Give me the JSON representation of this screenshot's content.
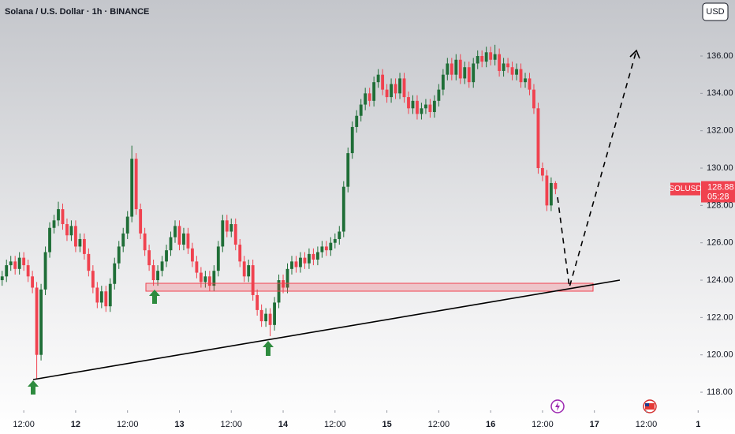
{
  "chart_data": {
    "type": "candlestick",
    "title": "Solana / U.S. Dollar · 1h · BINANCE",
    "currency": "USD",
    "symbol": "SOLUSD",
    "countdown": "05:28",
    "up_color": "#1f6e37",
    "down_color": "#f0424f",
    "open": [
      124.0,
      124.2,
      124.8,
      125.0,
      124.6,
      125.2,
      124.8,
      124.2,
      123.6,
      120.0,
      123.5,
      125.5,
      126.8,
      127.2,
      127.8,
      127.0,
      126.4,
      126.9,
      125.8,
      126.2,
      125.4,
      124.5,
      123.6,
      122.8,
      123.4,
      122.6,
      123.8,
      124.9,
      125.8,
      126.5,
      127.4,
      130.5,
      127.8,
      126.5,
      125.6,
      124.8,
      124.0,
      124.5,
      125.0,
      125.6,
      126.3,
      126.9,
      125.9,
      126.5,
      125.7,
      125.0,
      124.4,
      123.9,
      124.2,
      123.7,
      124.5,
      125.8,
      127.2,
      126.6,
      127.0,
      125.9,
      125.0,
      124.2,
      124.8,
      123.2,
      122.4,
      121.8,
      122.2,
      121.6,
      122.8,
      124.0,
      123.6,
      124.6,
      125.0,
      124.7,
      125.2,
      124.9,
      125.4,
      125.1,
      125.5,
      125.8,
      125.6,
      126.0,
      126.2,
      126.6,
      129.0,
      130.8,
      132.2,
      132.8,
      133.4,
      134.0,
      133.6,
      134.6,
      135.0,
      134.2,
      133.8,
      134.5,
      134.0,
      134.8,
      133.8,
      133.2,
      133.6,
      132.9,
      133.2,
      133.4,
      133.0,
      133.6,
      134.2,
      135.0,
      135.6,
      135.0,
      135.8,
      134.8,
      135.4,
      134.6,
      135.6,
      136.0,
      135.7,
      136.2,
      135.8,
      136.1,
      135.2,
      135.6,
      135.4,
      135.0,
      135.3,
      134.6,
      134.8,
      134.2,
      133.2,
      130.0,
      129.6,
      128.0,
      129.2
    ],
    "high": [
      124.5,
      125.1,
      125.3,
      125.3,
      125.5,
      125.5,
      125.1,
      124.5,
      123.9,
      123.8,
      125.8,
      127.1,
      127.5,
      128.2,
      128.1,
      127.3,
      127.2,
      127.2,
      126.5,
      126.5,
      125.7,
      124.8,
      123.9,
      123.7,
      123.7,
      124.1,
      125.2,
      126.1,
      126.8,
      127.7,
      131.2,
      130.8,
      128.1,
      126.8,
      125.9,
      125.1,
      124.8,
      125.3,
      125.9,
      126.6,
      127.2,
      127.2,
      126.8,
      126.8,
      126.0,
      125.3,
      124.7,
      124.5,
      124.5,
      124.8,
      126.1,
      127.5,
      127.5,
      127.3,
      127.3,
      126.2,
      125.3,
      125.1,
      125.1,
      123.5,
      122.7,
      122.5,
      122.5,
      123.1,
      124.3,
      124.3,
      124.9,
      125.3,
      125.3,
      125.5,
      125.5,
      125.7,
      125.7,
      125.8,
      126.1,
      126.1,
      126.3,
      126.5,
      126.9,
      129.3,
      131.1,
      132.5,
      133.1,
      133.7,
      134.3,
      134.3,
      134.9,
      135.3,
      135.3,
      134.5,
      134.8,
      134.8,
      135.1,
      135.1,
      134.1,
      133.9,
      133.9,
      133.5,
      133.7,
      133.7,
      133.9,
      134.5,
      135.3,
      135.9,
      135.9,
      136.1,
      136.1,
      135.7,
      135.7,
      135.9,
      136.3,
      136.3,
      136.5,
      136.5,
      136.6,
      136.4,
      135.9,
      135.9,
      135.7,
      135.6,
      135.6,
      135.1,
      135.1,
      134.5,
      133.5,
      130.3,
      129.9,
      129.5,
      129.3
    ],
    "low": [
      123.7,
      123.9,
      124.5,
      124.3,
      124.3,
      124.5,
      123.9,
      123.3,
      118.7,
      119.7,
      123.2,
      125.2,
      126.5,
      126.9,
      126.7,
      126.1,
      126.1,
      125.5,
      125.5,
      125.1,
      124.2,
      123.3,
      122.5,
      122.5,
      122.3,
      122.3,
      123.5,
      124.6,
      125.5,
      126.2,
      127.1,
      127.5,
      126.2,
      125.3,
      124.5,
      123.7,
      123.7,
      124.2,
      124.7,
      125.3,
      126.0,
      125.6,
      125.6,
      125.4,
      124.7,
      124.1,
      123.6,
      123.6,
      123.4,
      123.4,
      124.2,
      125.5,
      126.3,
      126.3,
      125.6,
      124.7,
      123.9,
      123.9,
      122.9,
      122.1,
      121.5,
      121.5,
      121.0,
      121.3,
      122.5,
      123.3,
      123.3,
      124.3,
      124.4,
      124.4,
      124.6,
      124.6,
      124.8,
      124.8,
      125.2,
      125.3,
      125.3,
      125.7,
      125.9,
      126.3,
      128.7,
      130.5,
      131.9,
      132.5,
      133.1,
      133.3,
      133.3,
      134.3,
      133.9,
      133.5,
      133.5,
      133.7,
      133.7,
      133.5,
      132.9,
      132.9,
      132.6,
      132.6,
      132.9,
      132.7,
      132.7,
      133.3,
      133.9,
      134.7,
      134.7,
      134.7,
      134.5,
      134.5,
      134.3,
      134.3,
      135.3,
      135.4,
      135.4,
      135.5,
      135.5,
      134.9,
      134.9,
      135.1,
      134.7,
      134.7,
      134.3,
      134.3,
      133.9,
      132.9,
      129.7,
      129.3,
      127.7,
      127.7,
      128.6
    ],
    "close": [
      124.2,
      124.8,
      125.0,
      124.6,
      125.2,
      124.8,
      124.2,
      123.6,
      120.0,
      123.5,
      125.5,
      126.8,
      127.2,
      127.8,
      127.0,
      126.4,
      126.9,
      125.8,
      126.2,
      125.4,
      124.5,
      123.6,
      122.8,
      123.4,
      122.6,
      123.8,
      124.9,
      125.8,
      126.5,
      127.4,
      130.5,
      127.8,
      126.5,
      125.6,
      124.8,
      124.0,
      124.5,
      125.0,
      125.6,
      126.3,
      126.9,
      125.9,
      126.5,
      125.7,
      125.0,
      124.4,
      123.9,
      124.2,
      123.7,
      124.5,
      125.8,
      127.2,
      126.6,
      127.0,
      125.9,
      125.0,
      124.2,
      124.8,
      123.2,
      122.4,
      121.8,
      122.2,
      121.6,
      122.8,
      124.0,
      123.6,
      124.6,
      125.0,
      124.7,
      125.2,
      124.9,
      125.4,
      125.1,
      125.5,
      125.8,
      125.6,
      126.0,
      126.2,
      126.6,
      129.0,
      130.8,
      132.2,
      132.8,
      133.4,
      134.0,
      133.6,
      134.6,
      135.0,
      134.2,
      133.8,
      134.5,
      134.0,
      134.8,
      133.8,
      133.2,
      133.6,
      132.9,
      133.2,
      133.4,
      133.0,
      133.6,
      134.2,
      135.0,
      135.6,
      135.0,
      135.8,
      134.8,
      135.4,
      134.6,
      135.6,
      136.0,
      135.7,
      136.2,
      135.8,
      136.1,
      135.2,
      135.6,
      135.4,
      135.0,
      135.3,
      134.6,
      134.8,
      134.2,
      133.2,
      130.0,
      129.6,
      128.0,
      129.2,
      128.88
    ],
    "xlim": [
      -0.5,
      161.5
    ],
    "xticks": [
      {
        "value": 5,
        "label": "12:00"
      },
      {
        "value": 17,
        "label": "12"
      },
      {
        "value": 29,
        "label": "12:00"
      },
      {
        "value": 41,
        "label": "13"
      },
      {
        "value": 53,
        "label": "12:00"
      },
      {
        "value": 65,
        "label": "14"
      },
      {
        "value": 77,
        "label": "12:00"
      },
      {
        "value": 89,
        "label": "15"
      },
      {
        "value": 101,
        "label": "12:00"
      },
      {
        "value": 113,
        "label": "16"
      },
      {
        "value": 125,
        "label": "12:00"
      },
      {
        "value": 137,
        "label": "17"
      },
      {
        "value": 149,
        "label": "12:00"
      },
      {
        "value": 161,
        "label": "1"
      }
    ],
    "ylim": [
      117.03,
      139.0
    ],
    "yticks": [
      {
        "value": 118,
        "label": "118.00"
      },
      {
        "value": 120,
        "label": "120.00"
      },
      {
        "value": 122,
        "label": "122.00"
      },
      {
        "value": 124,
        "label": "124.00"
      },
      {
        "value": 126,
        "label": "126.00"
      },
      {
        "value": 128,
        "label": "128.00"
      },
      {
        "value": 130,
        "label": "130.00"
      },
      {
        "value": 132,
        "label": "132.00"
      },
      {
        "value": 134,
        "label": "134.00"
      },
      {
        "value": 136,
        "label": "136.00"
      }
    ]
  }
}
